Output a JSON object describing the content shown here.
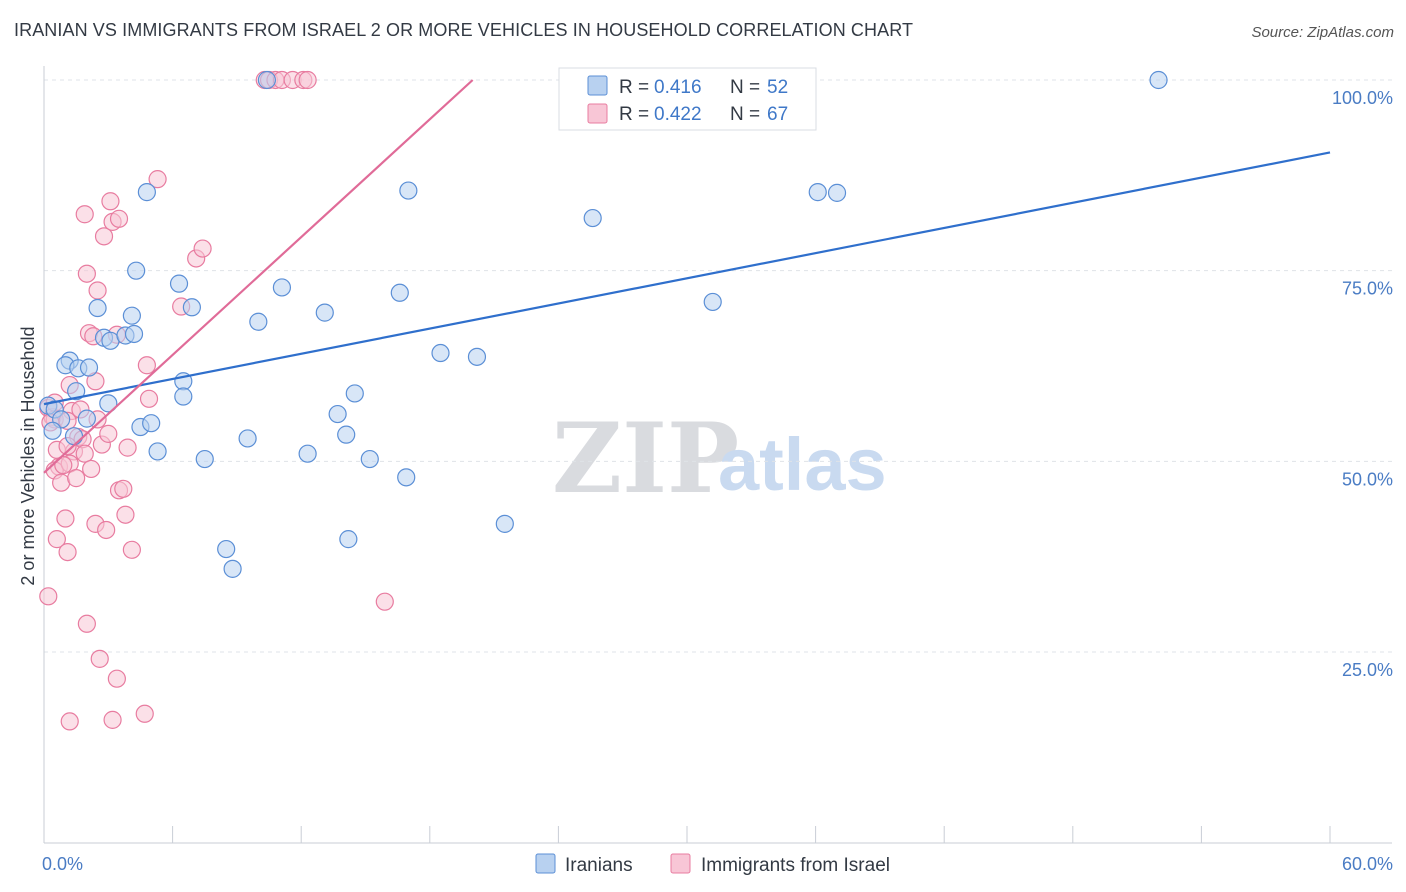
{
  "header": {
    "title": "IRANIAN VS IMMIGRANTS FROM ISRAEL 2 OR MORE VEHICLES IN HOUSEHOLD CORRELATION CHART",
    "source": "Source: ZipAtlas.com"
  },
  "watermark": {
    "zip": "ZIP",
    "atlas": "atlas"
  },
  "colors": {
    "blue_fill": "#b8d1f0",
    "blue_stroke": "#5b8fd6",
    "blue_line": "#2f6fcc",
    "pink_fill": "#f8c6d6",
    "pink_stroke": "#e87ca0",
    "pink_line": "#e06b98",
    "grid": "#dfe3e8",
    "tick_text": "#4a7cc4"
  },
  "legend": {
    "rows": [
      {
        "r_label": "R =",
        "r_value": "0.416",
        "n_label": "N =",
        "n_value": "52"
      },
      {
        "r_label": "R =",
        "r_value": "0.422",
        "n_label": "N =",
        "n_value": "67"
      }
    ]
  },
  "chart_data": {
    "type": "scatter",
    "title": "IRANIAN VS IMMIGRANTS FROM ISRAEL 2 OR MORE VEHICLES IN HOUSEHOLD CORRELATION CHART",
    "xlabel": "",
    "ylabel": "2 or more Vehicles in Household",
    "xlim": [
      0,
      60
    ],
    "ylim": [
      0,
      105
    ],
    "x_tick_labels": [
      "0.0%",
      "60.0%"
    ],
    "y_ticks": [
      25,
      50,
      75,
      100
    ],
    "y_tick_labels": [
      "25.0%",
      "50.0%",
      "75.0%",
      "100.0%"
    ],
    "grid": true,
    "legend_position": "top-center",
    "series": [
      {
        "name": "Iranians",
        "color": "#5b8fd6",
        "trend": {
          "x": [
            0,
            60
          ],
          "y": [
            57.5,
            90.5
          ]
        },
        "points": [
          [
            0.2,
            57.3
          ],
          [
            0.5,
            56.8
          ],
          [
            0.8,
            55.5
          ],
          [
            0.4,
            54.0
          ],
          [
            1.2,
            63.2
          ],
          [
            1.0,
            62.6
          ],
          [
            1.6,
            62.2
          ],
          [
            2.1,
            62.3
          ],
          [
            2.5,
            70.1
          ],
          [
            2.8,
            66.2
          ],
          [
            3.1,
            65.8
          ],
          [
            3.8,
            66.5
          ],
          [
            4.1,
            69.1
          ],
          [
            4.2,
            66.7
          ],
          [
            1.5,
            59.2
          ],
          [
            1.4,
            53.3
          ],
          [
            3.0,
            57.6
          ],
          [
            4.5,
            54.5
          ],
          [
            5.0,
            55.0
          ],
          [
            5.3,
            51.3
          ],
          [
            4.8,
            85.3
          ],
          [
            4.3,
            75.0
          ],
          [
            6.3,
            73.3
          ],
          [
            6.9,
            70.2
          ],
          [
            6.5,
            60.5
          ],
          [
            7.5,
            50.3
          ],
          [
            6.5,
            58.5
          ],
          [
            8.5,
            38.5
          ],
          [
            8.8,
            35.9
          ],
          [
            9.5,
            53.0
          ],
          [
            10.0,
            68.3
          ],
          [
            10.4,
            100.0
          ],
          [
            11.1,
            72.8
          ],
          [
            12.3,
            51.0
          ],
          [
            13.1,
            69.5
          ],
          [
            13.7,
            56.2
          ],
          [
            14.1,
            53.5
          ],
          [
            14.2,
            39.8
          ],
          [
            14.5,
            58.9
          ],
          [
            15.2,
            50.3
          ],
          [
            16.6,
            72.1
          ],
          [
            16.9,
            47.9
          ],
          [
            17.0,
            85.5
          ],
          [
            18.5,
            64.2
          ],
          [
            20.2,
            63.7
          ],
          [
            21.5,
            41.8
          ],
          [
            25.6,
            81.9
          ],
          [
            31.2,
            70.9
          ],
          [
            36.1,
            85.3
          ],
          [
            37.0,
            85.2
          ],
          [
            52.0,
            100.0
          ],
          [
            2.0,
            55.6
          ]
        ]
      },
      {
        "name": "Immigrants from Israel",
        "color": "#e87ca0",
        "trend": {
          "x": [
            0.0,
            20.0
          ],
          "y": [
            48.5,
            100.0
          ]
        },
        "points": [
          [
            0.2,
            57.0
          ],
          [
            0.4,
            55.8
          ],
          [
            0.5,
            55.5
          ],
          [
            0.3,
            55.1
          ],
          [
            0.6,
            51.5
          ],
          [
            0.7,
            49.3
          ],
          [
            0.5,
            48.8
          ],
          [
            0.8,
            47.2
          ],
          [
            0.2,
            32.3
          ],
          [
            1.0,
            42.5
          ],
          [
            0.6,
            39.8
          ],
          [
            1.1,
            38.1
          ],
          [
            1.2,
            60.0
          ],
          [
            1.3,
            56.6
          ],
          [
            1.1,
            55.3
          ],
          [
            1.4,
            51.3
          ],
          [
            1.2,
            49.7
          ],
          [
            1.5,
            47.8
          ],
          [
            1.6,
            53.2
          ],
          [
            1.7,
            56.8
          ],
          [
            1.8,
            52.9
          ],
          [
            1.9,
            51.0
          ],
          [
            1.9,
            82.4
          ],
          [
            2.0,
            74.6
          ],
          [
            2.1,
            66.8
          ],
          [
            2.3,
            66.4
          ],
          [
            2.2,
            49.0
          ],
          [
            2.4,
            41.8
          ],
          [
            2.5,
            72.4
          ],
          [
            2.4,
            60.5
          ],
          [
            2.5,
            55.5
          ],
          [
            2.6,
            24.1
          ],
          [
            2.8,
            79.5
          ],
          [
            2.9,
            41.0
          ],
          [
            3.1,
            84.1
          ],
          [
            3.2,
            81.4
          ],
          [
            3.4,
            66.6
          ],
          [
            3.5,
            81.8
          ],
          [
            3.5,
            46.2
          ],
          [
            3.7,
            46.4
          ],
          [
            3.9,
            51.8
          ],
          [
            3.8,
            43.0
          ],
          [
            4.1,
            38.4
          ],
          [
            4.8,
            62.6
          ],
          [
            4.9,
            58.2
          ],
          [
            5.3,
            87.0
          ],
          [
            6.4,
            70.3
          ],
          [
            7.1,
            76.6
          ],
          [
            7.4,
            77.9
          ],
          [
            2.0,
            28.7
          ],
          [
            3.4,
            21.5
          ],
          [
            1.2,
            15.9
          ],
          [
            3.2,
            16.1
          ],
          [
            4.7,
            16.9
          ],
          [
            10.3,
            100.0
          ],
          [
            10.5,
            100.0
          ],
          [
            10.8,
            100.0
          ],
          [
            11.1,
            100.0
          ],
          [
            11.6,
            100.0
          ],
          [
            12.1,
            100.0
          ],
          [
            12.3,
            100.0
          ],
          [
            15.9,
            31.6
          ],
          [
            0.5,
            57.7
          ],
          [
            1.1,
            52.0
          ],
          [
            0.9,
            49.5
          ],
          [
            2.7,
            52.2
          ],
          [
            3.0,
            53.6
          ]
        ]
      }
    ]
  },
  "bottom_legend": {
    "items": [
      {
        "label": "Iranians"
      },
      {
        "label": "Immigrants from Israel"
      }
    ]
  }
}
